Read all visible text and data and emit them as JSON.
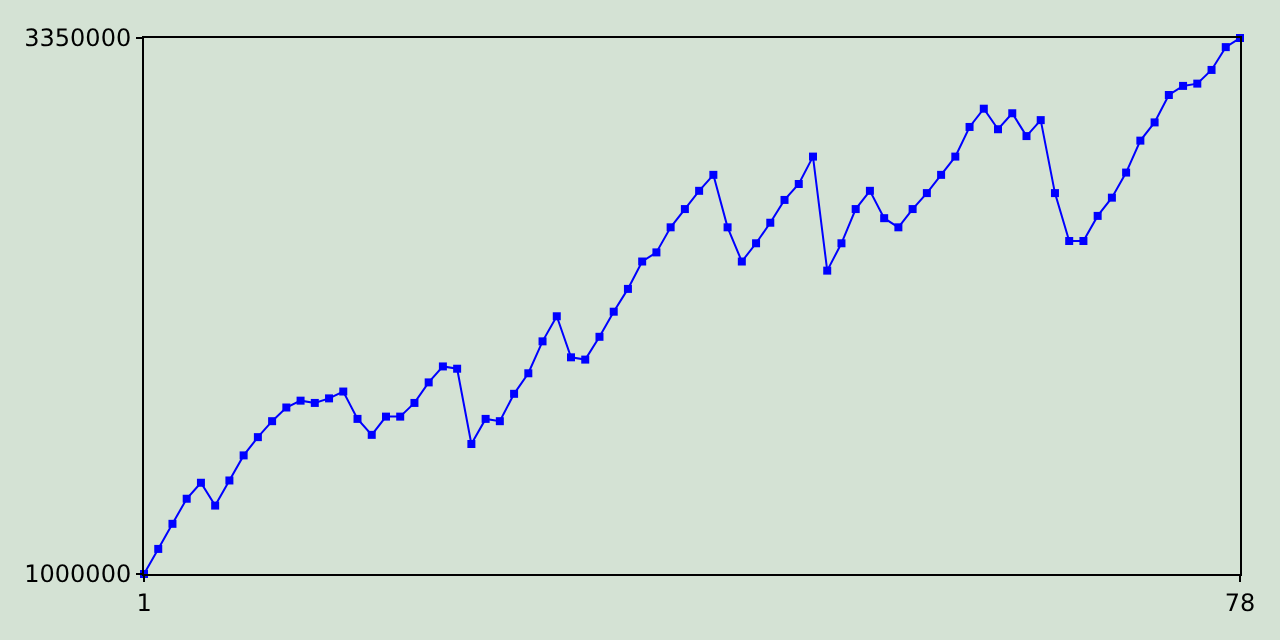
{
  "chart_data": {
    "type": "line",
    "x": [
      1,
      2,
      3,
      4,
      5,
      6,
      7,
      8,
      9,
      10,
      11,
      12,
      13,
      14,
      15,
      16,
      17,
      18,
      19,
      20,
      21,
      22,
      23,
      24,
      25,
      26,
      27,
      28,
      29,
      30,
      31,
      32,
      33,
      34,
      35,
      36,
      37,
      38,
      39,
      40,
      41,
      42,
      43,
      44,
      45,
      46,
      47,
      48,
      49,
      50,
      51,
      52,
      53,
      54,
      55,
      56,
      57,
      58,
      59,
      60,
      61,
      62,
      63,
      64,
      65,
      66,
      67,
      68,
      69,
      70,
      71,
      72,
      73,
      74,
      75,
      76,
      77,
      78
    ],
    "series": [
      {
        "color": "#0000ff",
        "values": [
          1000000,
          1110000,
          1220000,
          1330000,
          1400000,
          1300000,
          1410000,
          1520000,
          1600000,
          1670000,
          1730000,
          1760000,
          1750000,
          1770000,
          1800000,
          1680000,
          1610000,
          1690000,
          1690000,
          1750000,
          1840000,
          1910000,
          1900000,
          1570000,
          1680000,
          1670000,
          1790000,
          1880000,
          2020000,
          2130000,
          1950000,
          1940000,
          2040000,
          2150000,
          2250000,
          2370000,
          2410000,
          2520000,
          2600000,
          2680000,
          2750000,
          2520000,
          2370000,
          2450000,
          2540000,
          2640000,
          2710000,
          2830000,
          2330000,
          2450000,
          2600000,
          2680000,
          2560000,
          2520000,
          2600000,
          2670000,
          2750000,
          2830000,
          2960000,
          3040000,
          2950000,
          3020000,
          2920000,
          2990000,
          2670000,
          2460000,
          2460000,
          2570000,
          2650000,
          2760000,
          2900000,
          2980000,
          3100000,
          3140000,
          3150000,
          3210000,
          3310000,
          3350000
        ]
      }
    ],
    "xlim": [
      1,
      78
    ],
    "xticks": [
      1,
      78
    ],
    "ylim": [
      1000000,
      3350000
    ],
    "yticks": [
      1000000,
      3350000
    ],
    "legend": false,
    "marker": "square",
    "line_style": "solid"
  }
}
